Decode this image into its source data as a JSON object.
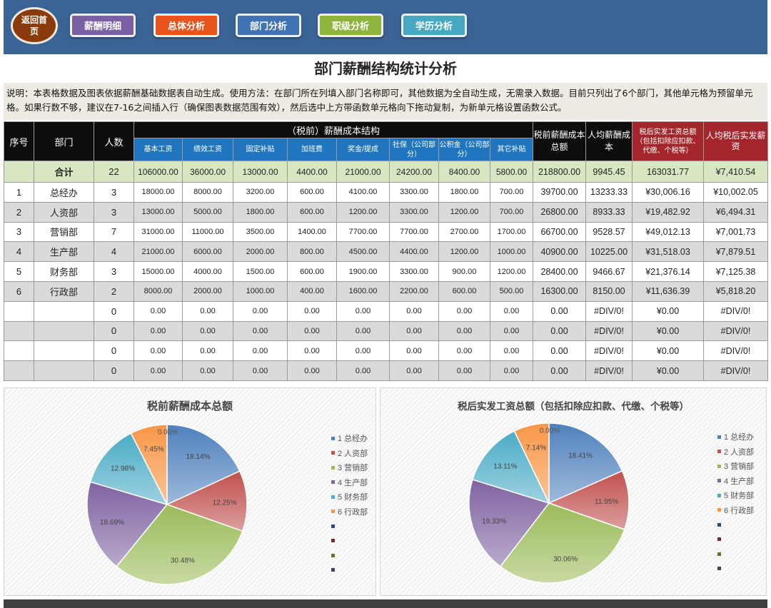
{
  "nav": {
    "home_label": "返回首页",
    "buttons": [
      {
        "label": "薪酬明细",
        "color": "#7b5fa6"
      },
      {
        "label": "总体分析",
        "color": "#e8531c"
      },
      {
        "label": "部门分析",
        "color": "#3f73b5"
      },
      {
        "label": "职级分析",
        "color": "#8fb43b"
      },
      {
        "label": "学历分析",
        "color": "#45a9c2"
      }
    ]
  },
  "page_title": "部门薪酬结构统计分析",
  "notes": "说明：本表格数据及图表依据薪酬基础数据表自动生成。使用方法：在部门所在列填入部门名称即可，其他数据为全自动生成，无需录入数据。目前只列出了6个部门，其他单元格为预留单元格。如果行数不够，建议在7-16之间插入行（确保图表数据范围有效），然后选中上方带函数单元格向下拖动复制，为新单元格设置函数公式。",
  "table": {
    "headers": {
      "seq": "序号",
      "dept": "部门",
      "count": "人数",
      "group": "（税前）薪酬成本结构",
      "sub": [
        "基本工资",
        "绩效工资",
        "固定补贴",
        "加班费",
        "奖金/提成",
        "社保（公司部分）",
        "公积金（公司部分）",
        "其它补贴"
      ],
      "total_cost": "税前薪酬成本总额",
      "avg_cost": "人均薪酬成本",
      "after_tax_total": "税后实发工资总额（包括扣除应扣款、代缴、个税等）",
      "avg_after_tax": "人均税后实发薪资"
    },
    "total_row": {
      "label": "合计",
      "count": "22",
      "values": [
        "106000.00",
        "36000.00",
        "13000.00",
        "4400.00",
        "21000.00",
        "24200.00",
        "8400.00",
        "5800.00"
      ],
      "total_cost": "218800.00",
      "avg_cost": "9945.45",
      "after_tax_total": "163031.77",
      "avg_after_tax": "¥7,410.54"
    },
    "rows": [
      {
        "seq": "1",
        "dept": "总经办",
        "count": "3",
        "values": [
          "18000.00",
          "8000.00",
          "3200.00",
          "600.00",
          "4100.00",
          "3300.00",
          "1800.00",
          "700.00"
        ],
        "total_cost": "39700.00",
        "avg_cost": "13233.33",
        "after_tax_total": "¥30,006.16",
        "avg_after_tax": "¥10,002.05"
      },
      {
        "seq": "2",
        "dept": "人资部",
        "count": "3",
        "values": [
          "13000.00",
          "5000.00",
          "1800.00",
          "600.00",
          "1200.00",
          "3300.00",
          "1200.00",
          "700.00"
        ],
        "total_cost": "26800.00",
        "avg_cost": "8933.33",
        "after_tax_total": "¥19,482.92",
        "avg_after_tax": "¥6,494.31"
      },
      {
        "seq": "3",
        "dept": "营销部",
        "count": "7",
        "values": [
          "31000.00",
          "11000.00",
          "3500.00",
          "1400.00",
          "7700.00",
          "7700.00",
          "2700.00",
          "1700.00"
        ],
        "total_cost": "66700.00",
        "avg_cost": "9528.57",
        "after_tax_total": "¥49,012.13",
        "avg_after_tax": "¥7,001.73"
      },
      {
        "seq": "4",
        "dept": "生产部",
        "count": "4",
        "values": [
          "21000.00",
          "6000.00",
          "2000.00",
          "800.00",
          "4500.00",
          "4400.00",
          "1200.00",
          "1000.00"
        ],
        "total_cost": "40900.00",
        "avg_cost": "10225.00",
        "after_tax_total": "¥31,518.03",
        "avg_after_tax": "¥7,879.51"
      },
      {
        "seq": "5",
        "dept": "财务部",
        "count": "3",
        "values": [
          "15000.00",
          "4000.00",
          "1500.00",
          "600.00",
          "1900.00",
          "3300.00",
          "900.00",
          "1200.00"
        ],
        "total_cost": "28400.00",
        "avg_cost": "9466.67",
        "after_tax_total": "¥21,376.14",
        "avg_after_tax": "¥7,125.38"
      },
      {
        "seq": "6",
        "dept": "行政部",
        "count": "2",
        "values": [
          "8000.00",
          "2000.00",
          "1000.00",
          "400.00",
          "1600.00",
          "2200.00",
          "600.00",
          "500.00"
        ],
        "total_cost": "16300.00",
        "avg_cost": "8150.00",
        "after_tax_total": "¥11,636.39",
        "avg_after_tax": "¥5,818.20"
      },
      {
        "seq": "",
        "dept": "",
        "count": "0",
        "values": [
          "0.00",
          "0.00",
          "0.00",
          "0.00",
          "0.00",
          "0.00",
          "0.00",
          "0.00"
        ],
        "total_cost": "0.00",
        "avg_cost": "#DIV/0!",
        "after_tax_total": "¥0.00",
        "avg_after_tax": "#DIV/0!"
      },
      {
        "seq": "",
        "dept": "",
        "count": "0",
        "values": [
          "0.00",
          "0.00",
          "0.00",
          "0.00",
          "0.00",
          "0.00",
          "0.00",
          "0.00"
        ],
        "total_cost": "0.00",
        "avg_cost": "#DIV/0!",
        "after_tax_total": "¥0.00",
        "avg_after_tax": "#DIV/0!"
      },
      {
        "seq": "",
        "dept": "",
        "count": "0",
        "values": [
          "0.00",
          "0.00",
          "0.00",
          "0.00",
          "0.00",
          "0.00",
          "0.00",
          "0.00"
        ],
        "total_cost": "0.00",
        "avg_cost": "#DIV/0!",
        "after_tax_total": "¥0.00",
        "avg_after_tax": "#DIV/0!"
      },
      {
        "seq": "",
        "dept": "",
        "count": "0",
        "values": [
          "0.00",
          "0.00",
          "0.00",
          "0.00",
          "0.00",
          "0.00",
          "0.00",
          "0.00"
        ],
        "total_cost": "0.00",
        "avg_cost": "#DIV/0!",
        "after_tax_total": "¥0.00",
        "avg_after_tax": "#DIV/0!"
      }
    ]
  },
  "chart_data": [
    {
      "type": "pie",
      "title": "税前薪酬成本总额",
      "categories": [
        "1 总经办",
        "2 人资部",
        "3 营销部",
        "4 生产部",
        "5 财务部",
        "6 行政部",
        "",
        "",
        "",
        ""
      ],
      "values": [
        39700,
        26800,
        66700,
        40900,
        28400,
        16300,
        0,
        0,
        0,
        0
      ],
      "labels": [
        "18.14%",
        "12.25%",
        "30.48%",
        "18.69%",
        "12.98%",
        "7.45%",
        "0.00%"
      ],
      "colors": [
        "#4f81bd",
        "#c0504d",
        "#9bbb59",
        "#8064a2",
        "#4bacc6",
        "#f79646",
        "#2c4d75",
        "#772c2a",
        "#5f7530",
        "#4d3b62"
      ],
      "legend": "right"
    },
    {
      "type": "pie",
      "title": "税后实发工资总额（包括扣除应扣款、代缴、个税等）",
      "categories": [
        "1 总经办",
        "2 人资部",
        "3 营销部",
        "4 生产部",
        "5 财务部",
        "6 行政部",
        "",
        "",
        "",
        ""
      ],
      "values": [
        30006.16,
        19482.92,
        49012.13,
        31518.03,
        21376.14,
        11636.39,
        0,
        0,
        0,
        0
      ],
      "labels": [
        "18.41%",
        "11.95%",
        "30.06%",
        "19.33%",
        "13.11%",
        "7.14%",
        "0.00%"
      ],
      "colors": [
        "#4f81bd",
        "#c0504d",
        "#9bbb59",
        "#8064a2",
        "#4bacc6",
        "#f79646",
        "#2c4d75",
        "#772c2a",
        "#5f7530",
        "#4d3b62"
      ],
      "legend": "right"
    }
  ]
}
